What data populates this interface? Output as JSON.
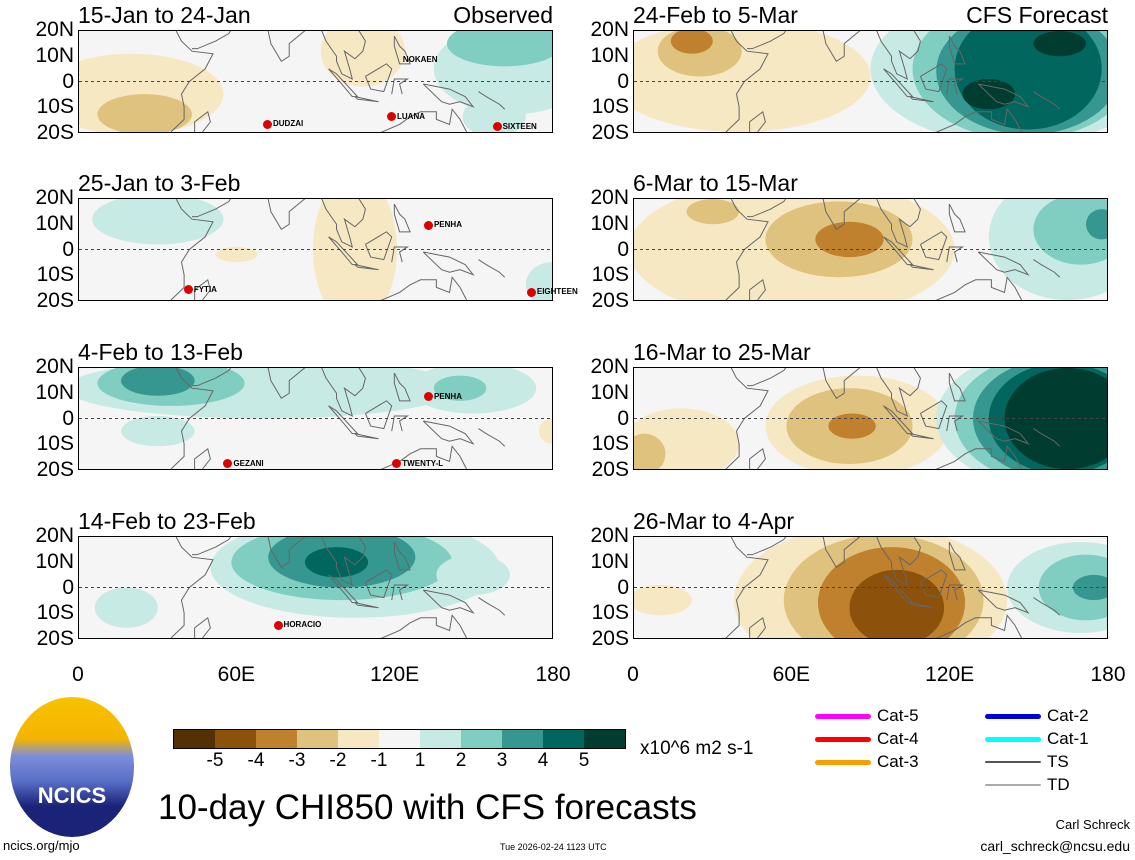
{
  "panels": [
    {
      "title": "15-Jan to 24-Jan",
      "label": "Observed",
      "storms": [
        {
          "name": "NOKAEN",
          "lon": 125,
          "lat": 8,
          "marker": false
        },
        {
          "name": "DUDZAI",
          "lon": 72,
          "lat": -17,
          "marker": true
        },
        {
          "name": "LUANA",
          "lon": 119,
          "lat": -14,
          "marker": true
        },
        {
          "name": "SIXTEEN",
          "lon": 159,
          "lat": -18,
          "marker": true
        }
      ]
    },
    {
      "title": "25-Jan to 3-Feb",
      "label": "",
      "storms": [
        {
          "name": "PENHA",
          "lon": 133,
          "lat": 9,
          "marker": true
        },
        {
          "name": "FYTIA",
          "lon": 42,
          "lat": -16,
          "marker": true
        },
        {
          "name": "EIGHTEEN",
          "lon": 172,
          "lat": -17,
          "marker": true
        }
      ]
    },
    {
      "title": "4-Feb to 13-Feb",
      "label": "",
      "storms": [
        {
          "name": "PENHA",
          "lon": 133,
          "lat": 8,
          "marker": true
        },
        {
          "name": "GEZANI",
          "lon": 57,
          "lat": -18,
          "marker": true
        },
        {
          "name": "TWENTY-L",
          "lon": 121,
          "lat": -18,
          "marker": true
        }
      ]
    },
    {
      "title": "14-Feb to 23-Feb",
      "label": "",
      "storms": [
        {
          "name": "HORACIO",
          "lon": 76,
          "lat": -15,
          "marker": true
        }
      ]
    },
    {
      "title": "24-Feb to 5-Mar",
      "label": "CFS Forecast",
      "storms": []
    },
    {
      "title": "6-Mar to 15-Mar",
      "label": "",
      "storms": []
    },
    {
      "title": "16-Mar to 25-Mar",
      "label": "",
      "storms": []
    },
    {
      "title": "26-Mar to 4-Apr",
      "label": "",
      "storms": []
    }
  ],
  "lat_ticks": [
    "20N",
    "10N",
    "0",
    "10S",
    "20S"
  ],
  "lon_ticks": [
    "0",
    "60E",
    "120E",
    "180"
  ],
  "colorbar": {
    "colors": [
      "#543005",
      "#8c510a",
      "#bf812d",
      "#dfc27d",
      "#f6e8c3",
      "#f5f5f5",
      "#c7eae5",
      "#80cdc1",
      "#35978f",
      "#01665e",
      "#003c30"
    ],
    "labels": [
      "-5",
      "-4",
      "-3",
      "-2",
      "-1",
      "1",
      "2",
      "3",
      "4",
      "5"
    ],
    "units": "x10^6 m2 s-1"
  },
  "legend": [
    {
      "label": "Cat-5",
      "color": "#ff00ff"
    },
    {
      "label": "Cat-4",
      "color": "#ff0000"
    },
    {
      "label": "Cat-3",
      "color": "#f5a000"
    },
    {
      "label": "Cat-2",
      "color": "#0000dd"
    },
    {
      "label": "Cat-1",
      "color": "#00ffff"
    },
    {
      "label": "TS",
      "color": "#555555"
    },
    {
      "label": "TD",
      "color": "#aaaaaa"
    }
  ],
  "title": "10-day CHI850 with CFS forecasts",
  "logo_text": "NCICS",
  "footer": {
    "url": "ncics.org/mjo",
    "timestamp": "Tue 2026-02-24 1123 UTC",
    "author": "Carl Schreck",
    "email": "carl_schreck@ncsu.edu"
  }
}
